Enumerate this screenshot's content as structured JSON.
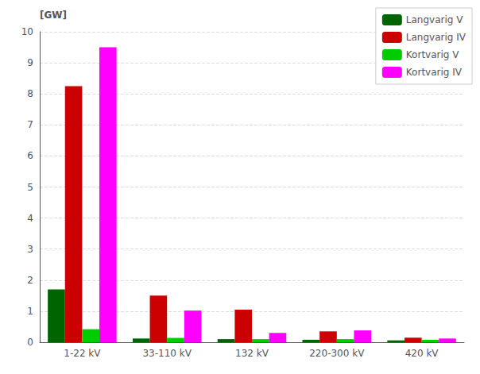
{
  "chart_data": {
    "type": "bar",
    "ylabel": "[GW]",
    "categories": [
      "1-22 kV",
      "33-110 kV",
      "132 kV",
      "220-300 kV",
      "420 kV"
    ],
    "series": [
      {
        "name": "Langvarig V",
        "color": "#006400",
        "values": [
          1.7,
          0.12,
          0.1,
          0.08,
          0.06
        ]
      },
      {
        "name": "Langvarig IV",
        "color": "#cc0000",
        "values": [
          8.25,
          1.5,
          1.05,
          0.35,
          0.15
        ]
      },
      {
        "name": "Kortvarig V",
        "color": "#00cc00",
        "values": [
          0.42,
          0.14,
          0.1,
          0.1,
          0.08
        ]
      },
      {
        "name": "Kortvarig IV",
        "color": "#ff00ff",
        "values": [
          9.5,
          1.02,
          0.3,
          0.38,
          0.12
        ]
      }
    ],
    "ylim": [
      0,
      10
    ],
    "yticks": [
      0,
      1,
      2,
      3,
      4,
      5,
      6,
      7,
      8,
      9,
      10
    ],
    "grid": true,
    "legend": "upper right"
  }
}
